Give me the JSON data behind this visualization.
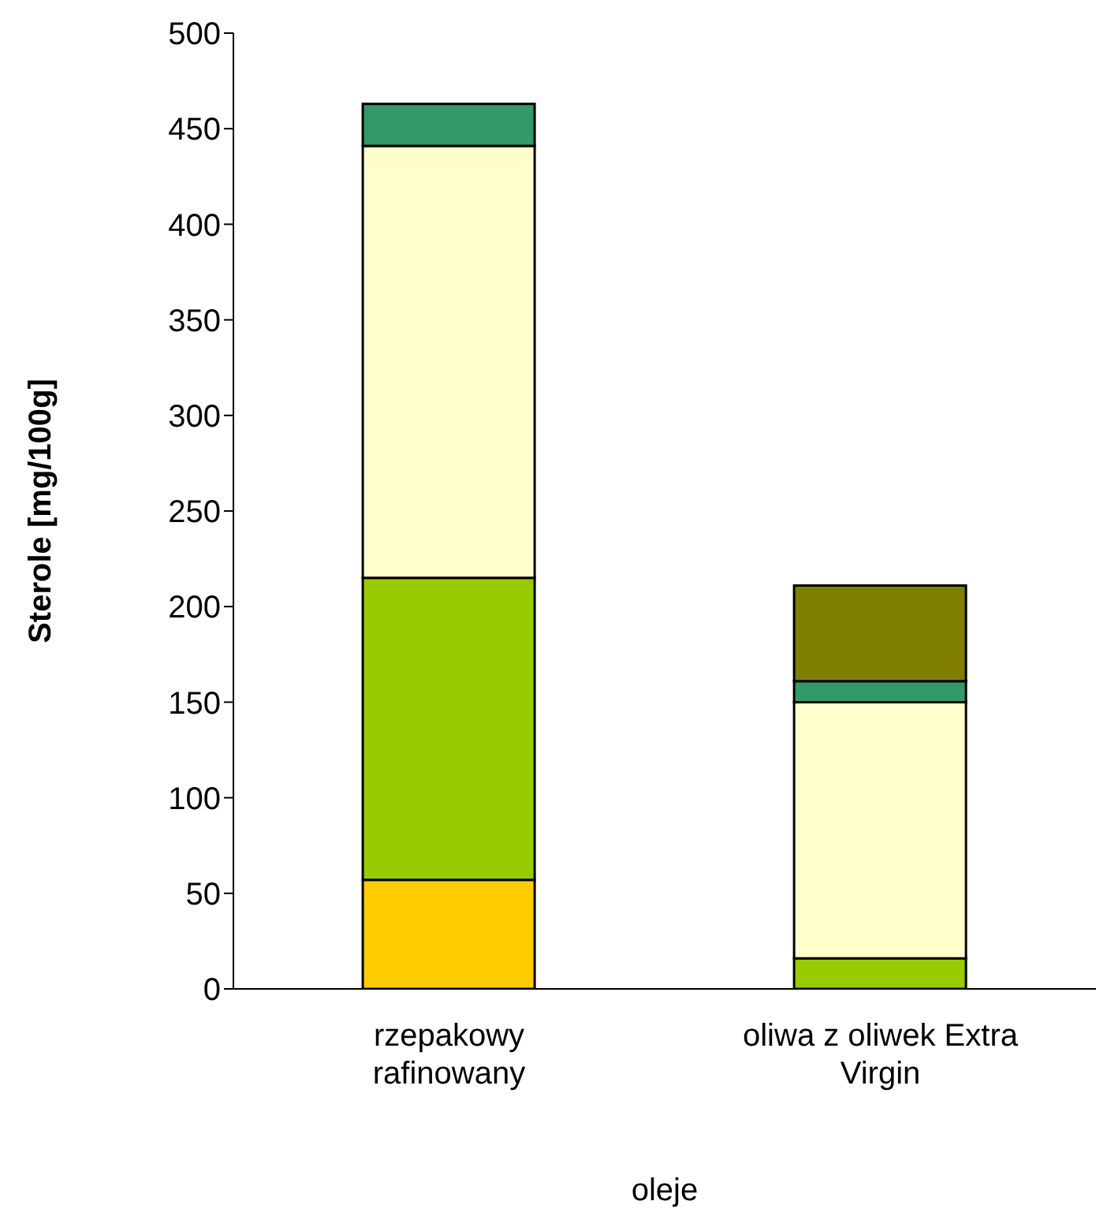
{
  "chart_data": {
    "type": "bar",
    "stacked": true,
    "xlabel": "oleje",
    "ylabel": "Sterole [mg/100g]",
    "categories": [
      "rzepakowy rafinowany",
      "oliwa z oliwek Extra Virgin"
    ],
    "series": [
      {
        "color": "#ffcc00",
        "values": [
          57,
          null
        ]
      },
      {
        "color": "#99cc00",
        "values": [
          158,
          16
        ]
      },
      {
        "color": "#ffffcc",
        "values": [
          226,
          134
        ]
      },
      {
        "color": "#339966",
        "values": [
          22,
          11
        ]
      },
      {
        "color": "#808000",
        "values": [
          null,
          50
        ]
      }
    ],
    "ylim": [
      0,
      500
    ],
    "yticks": [
      0,
      50,
      100,
      150,
      200,
      250,
      300,
      350,
      400,
      450,
      500
    ],
    "grid": false,
    "legend": false
  }
}
